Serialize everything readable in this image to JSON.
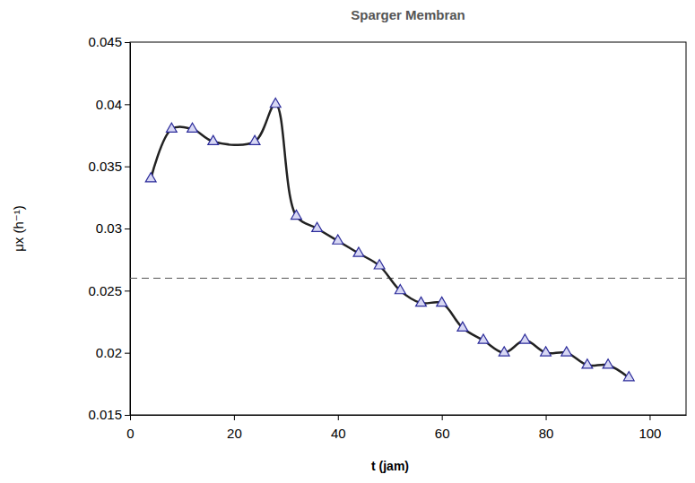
{
  "chart_data": {
    "type": "line",
    "title": "Sparger Membran",
    "x_label": "t (jam)",
    "y_label": "μx (h⁻¹)",
    "x": [
      4,
      8,
      12,
      16,
      24,
      28,
      32,
      36,
      40,
      44,
      48,
      52,
      56,
      60,
      64,
      68,
      72,
      76,
      80,
      84,
      88,
      92,
      96
    ],
    "series": [
      {
        "color": "#222222",
        "marker": "triangle",
        "line_style": "solid",
        "values": [
          0.034,
          0.038,
          0.038,
          0.037,
          0.037,
          0.04,
          0.031,
          0.03,
          0.029,
          0.028,
          0.027,
          0.025,
          0.024,
          0.024,
          0.022,
          0.021,
          0.02,
          0.021,
          0.02,
          0.02,
          0.019,
          0.019,
          0.018
        ]
      }
    ],
    "xlim": [
      0,
      107
    ],
    "ylim": [
      0.015,
      0.045
    ],
    "xticks": [
      0,
      20,
      40,
      60,
      80,
      100
    ],
    "yticks": [
      0.015,
      0.02,
      0.025,
      0.03,
      0.035,
      0.04,
      0.045
    ],
    "hline": 0.026,
    "grid": false
  }
}
